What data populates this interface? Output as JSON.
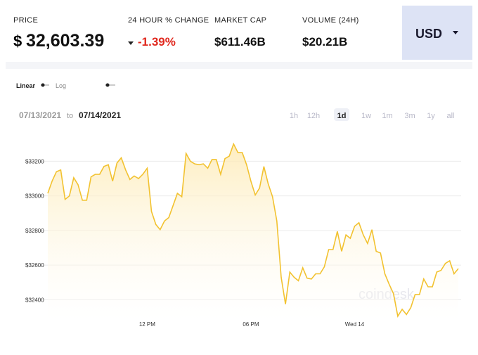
{
  "header": {
    "price": {
      "label": "PRICE",
      "currency": "$",
      "amount": "32,603.39"
    },
    "change": {
      "label": "24 HOUR % CHANGE",
      "value": "-1.39%"
    },
    "market_cap": {
      "label": "MARKET CAP",
      "value": "$611.46B"
    },
    "volume": {
      "label": "VOLUME (24H)",
      "value": "$20.21B"
    },
    "currency": "USD"
  },
  "controls": {
    "scales": [
      "Linear",
      "Log"
    ],
    "date_from": "07/13/2021",
    "date_sep": "to",
    "date_to": "07/14/2021",
    "ranges": [
      "1h",
      "12h",
      "1d",
      "1w",
      "1m",
      "3m",
      "1y",
      "all"
    ],
    "active_range": "1d"
  },
  "watermark": "coindesk",
  "chart_data": {
    "type": "area",
    "color": "#f2c230",
    "categories": [
      null,
      null,
      null,
      null,
      null,
      null,
      null,
      null,
      null,
      null,
      null,
      null,
      null,
      null,
      null,
      null,
      null,
      null,
      null,
      null,
      null,
      null,
      null,
      "12 PM",
      null,
      null,
      null,
      null,
      null,
      null,
      null,
      null,
      null,
      null,
      null,
      null,
      null,
      null,
      null,
      null,
      null,
      null,
      null,
      null,
      null,
      null,
      null,
      "06 PM",
      null,
      null,
      null,
      null,
      null,
      null,
      null,
      null,
      null,
      null,
      null,
      null,
      null,
      null,
      null,
      null,
      null,
      null,
      null,
      null,
      null,
      null,
      null,
      "Wed 14",
      null,
      null,
      null,
      null,
      null,
      null,
      null,
      null,
      null,
      null,
      null,
      null,
      null,
      null,
      null,
      null,
      null,
      null,
      null,
      null,
      null,
      null,
      null,
      null
    ],
    "values": [
      33015,
      33085,
      33140,
      33150,
      32980,
      33000,
      33105,
      33065,
      32975,
      32975,
      33110,
      33125,
      33125,
      33170,
      33180,
      33085,
      33190,
      33220,
      33150,
      33095,
      33115,
      33100,
      33125,
      33160,
      32910,
      32835,
      32805,
      32855,
      32875,
      32945,
      33015,
      32995,
      33245,
      33200,
      33185,
      33180,
      33185,
      33160,
      33210,
      33210,
      33125,
      33215,
      33230,
      33300,
      33250,
      33250,
      33180,
      33085,
      33005,
      33045,
      33170,
      33070,
      32995,
      32855,
      32530,
      32375,
      32560,
      32530,
      32510,
      32585,
      32525,
      32520,
      32550,
      32550,
      32590,
      32690,
      32690,
      32795,
      32680,
      32775,
      32755,
      32825,
      32845,
      32775,
      32725,
      32805,
      32680,
      32670,
      32550,
      32490,
      32435,
      32305,
      32345,
      32315,
      32355,
      32430,
      32430,
      32520,
      32475,
      32475,
      32560,
      32570,
      32610,
      32625,
      32550,
      32580
    ],
    "ylim": [
      32280,
      33360
    ],
    "yticks": [
      {
        "value": 32400,
        "label": "$32400"
      },
      {
        "value": 32600,
        "label": "$32600"
      },
      {
        "value": 32800,
        "label": "$32800"
      },
      {
        "value": 33000,
        "label": "$33000"
      },
      {
        "value": 33200,
        "label": "$33200"
      }
    ],
    "grid": true
  }
}
